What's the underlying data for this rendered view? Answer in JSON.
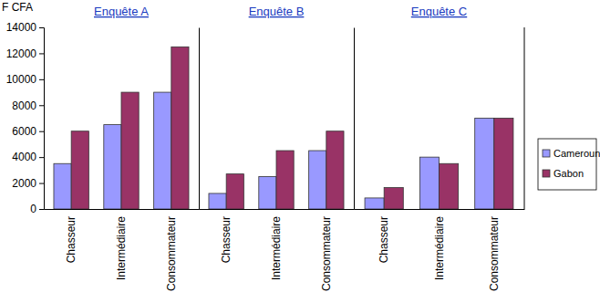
{
  "chart_data": [
    {
      "type": "bar",
      "title": "Enquête A",
      "y_label": "F CFA",
      "categories": [
        "Chasseur",
        "Intermédiaire",
        "Consommateur"
      ],
      "series": [
        {
          "name": "Cameroun",
          "color": "#9999ff",
          "values": [
            3500,
            6500,
            9000
          ]
        },
        {
          "name": "Gabon",
          "color": "#993366",
          "values": [
            6000,
            9000,
            12500
          ]
        }
      ],
      "ylim": [
        0,
        14000
      ],
      "yticks": [
        0,
        2000,
        4000,
        6000,
        8000,
        10000,
        12000,
        14000
      ],
      "legend": "right"
    },
    {
      "type": "bar",
      "title": "Enquête B",
      "categories": [
        "Chasseur",
        "Intermédiaire",
        "Consommateur"
      ],
      "series": [
        {
          "name": "Cameroun",
          "color": "#9999ff",
          "values": [
            1200,
            2500,
            4500
          ]
        },
        {
          "name": "Gabon",
          "color": "#993366",
          "values": [
            2700,
            4500,
            6000
          ]
        }
      ],
      "ylim": [
        0,
        14000
      ],
      "tick_labels": "x"
    },
    {
      "type": "bar",
      "title": "Enquête C",
      "categories": [
        "Chasseur",
        "Intermédiaire",
        "Consommateur"
      ],
      "series": [
        {
          "name": "Cameroun",
          "color": "#9999ff",
          "values": [
            850,
            4000,
            7000
          ]
        },
        {
          "name": "Gabon",
          "color": "#993366",
          "values": [
            1650,
            3500,
            7000
          ]
        }
      ],
      "ylim": [
        0,
        14000
      ],
      "tick_labels": "x"
    }
  ]
}
